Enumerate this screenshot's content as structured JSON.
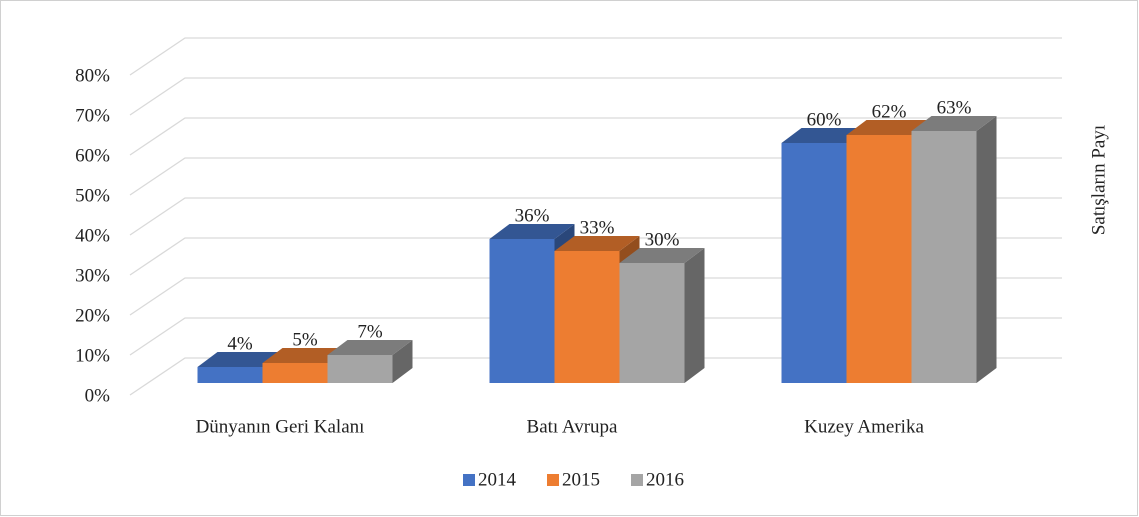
{
  "chart_data": {
    "type": "bar3d",
    "y_axis_title": "Satışların Payı",
    "categories": [
      "Dünyanın Geri Kalanı",
      "Batı Avrupa",
      "Kuzey Amerika"
    ],
    "series": [
      {
        "name": "2014",
        "color": "#4472c4",
        "values": [
          4,
          36,
          60
        ],
        "value_labels": [
          "4%",
          "36%",
          "60%"
        ]
      },
      {
        "name": "2015",
        "color": "#ed7d31",
        "values": [
          5,
          33,
          62
        ],
        "value_labels": [
          "5%",
          "33%",
          "62%"
        ]
      },
      {
        "name": "2016",
        "color": "#a5a5a5",
        "values": [
          7,
          30,
          63
        ],
        "value_labels": [
          "7%",
          "30%",
          "63%"
        ]
      }
    ],
    "ylim": [
      0,
      80
    ],
    "yticks": [
      {
        "value": 0,
        "label": "0%"
      },
      {
        "value": 10,
        "label": "10%"
      },
      {
        "value": 20,
        "label": "20%"
      },
      {
        "value": 30,
        "label": "30%"
      },
      {
        "value": 40,
        "label": "40%"
      },
      {
        "value": 50,
        "label": "50%"
      },
      {
        "value": 60,
        "label": "60%"
      },
      {
        "value": 70,
        "label": "70%"
      },
      {
        "value": 80,
        "label": "80%"
      }
    ],
    "grid": true,
    "legend": "bottom"
  }
}
